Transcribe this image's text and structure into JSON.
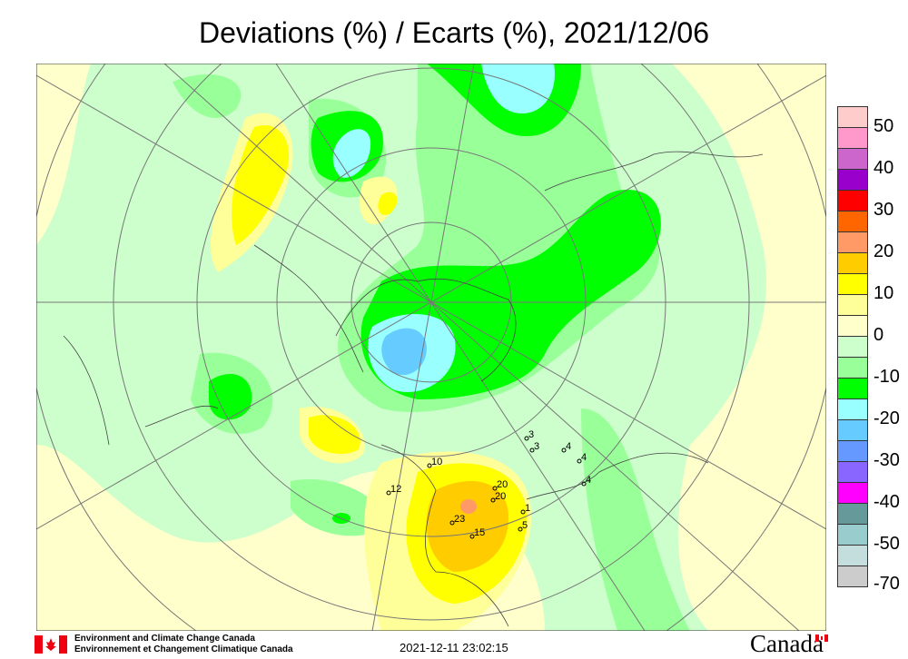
{
  "title": "Deviations (%) / Ecarts (%), 2021/12/06",
  "legend": {
    "colors": [
      "#FFCCCC",
      "#FF99CC",
      "#CC66CC",
      "#9900CC",
      "#FF0000",
      "#FF6600",
      "#FF9966",
      "#FFCC00",
      "#FFFF00",
      "#FFFF99",
      "#FFFFCC",
      "#CCFFCC",
      "#99FF99",
      "#00FF00",
      "#99FFFF",
      "#66CCFF",
      "#6699FF",
      "#8866FF",
      "#FF00FF",
      "#669999",
      "#99CCCC",
      "#C4DEDE",
      "#CCCCCC"
    ],
    "labels": [
      "50",
      "40",
      "30",
      "20",
      "10",
      "0",
      "-10",
      "-20",
      "-30",
      "-40",
      "-50",
      "-70"
    ]
  },
  "stations": [
    "10",
    "12",
    "20",
    "20",
    "23",
    "15",
    "1",
    "5",
    "3",
    "3",
    "4",
    "4",
    "4"
  ],
  "footer": {
    "org_en": "Environment and Climate Change Canada",
    "org_fr": "Environnement et Changement Climatique Canada",
    "timestamp": "2021-12-11 23:02:15",
    "wordmark": "Canada"
  }
}
